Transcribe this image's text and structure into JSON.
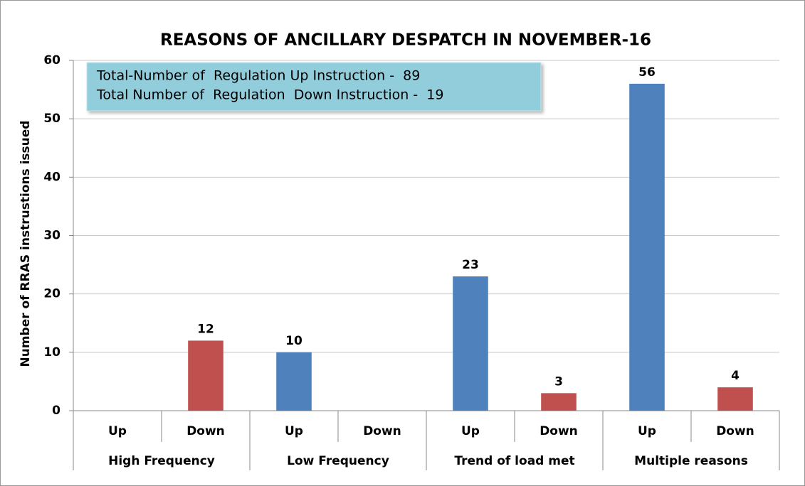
{
  "chart_data": {
    "type": "bar",
    "title": "REASONS OF ANCILLARY DESPATCH IN NOVEMBER-16",
    "y_label": "Number of RRAS instrustions issued",
    "annotations": [
      "Total-Number of  Regulation Up Instruction -  89",
      "Total Number of  Regulation  Down Instruction -  19"
    ],
    "groups": [
      "High Frequency",
      "Low Frequency",
      "Trend of load met",
      "Multiple reasons"
    ],
    "categories": [
      "Up",
      "Down",
      "Up",
      "Down",
      "Up",
      "Down",
      "Up",
      "Down"
    ],
    "values": [
      null,
      12,
      10,
      null,
      23,
      3,
      56,
      4
    ],
    "colors": [
      "#4f81bd",
      "#c0504d",
      "#4f81bd",
      "#c0504d",
      "#4f81bd",
      "#c0504d",
      "#4f81bd",
      "#c0504d"
    ],
    "ylim": [
      0,
      60
    ],
    "yticks": [
      0,
      10,
      20,
      30,
      40,
      50,
      60
    ],
    "grid": true
  }
}
